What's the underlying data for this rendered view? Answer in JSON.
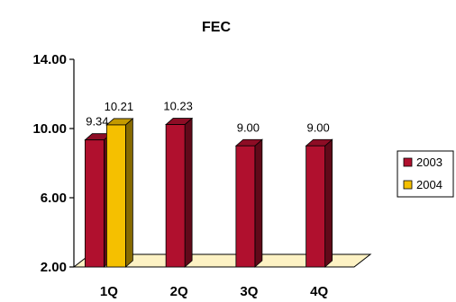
{
  "chart_data": {
    "type": "bar",
    "title": "FEC",
    "categories": [
      "1Q",
      "2Q",
      "3Q",
      "4Q"
    ],
    "series": [
      {
        "name": "2003",
        "values": [
          9.34,
          10.23,
          9.0,
          9.0
        ],
        "labels": [
          "9.34",
          "10.23",
          "9.00",
          "9.00"
        ],
        "color": "#b0102e"
      },
      {
        "name": "2004",
        "values": [
          10.21,
          null,
          null,
          null
        ],
        "labels": [
          "10.21",
          null,
          null,
          null
        ],
        "color": "#f5c000"
      }
    ],
    "yticks": [
      "2.00",
      "6.00",
      "10.00",
      "14.00"
    ],
    "ylim": [
      2,
      14
    ],
    "legend_position": "right",
    "grid": false,
    "floor_color": "#fdf2c4"
  }
}
